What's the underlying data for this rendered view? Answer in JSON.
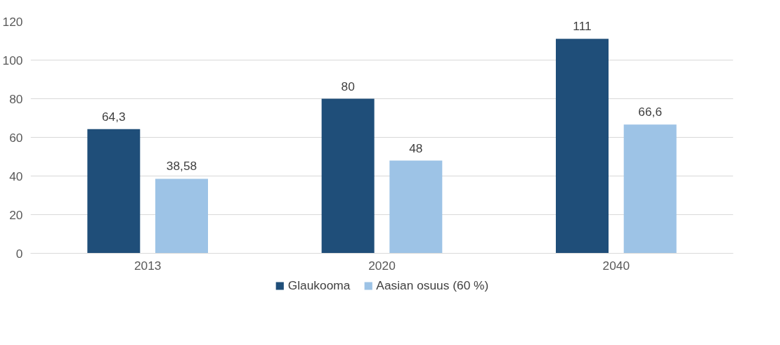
{
  "chart_data": {
    "type": "bar",
    "categories": [
      "2013",
      "2020",
      "2040"
    ],
    "series": [
      {
        "name": "Glaukooma",
        "color": "#1f4e79",
        "values": [
          64.3,
          80,
          111
        ],
        "value_labels": [
          "64,3",
          "80",
          "111"
        ]
      },
      {
        "name": "Aasian osuus (60 %)",
        "color": "#9dc3e6",
        "values": [
          38.58,
          48,
          66.6
        ],
        "value_labels": [
          "38,58",
          "48",
          "66,6"
        ]
      }
    ],
    "ylim": [
      0,
      120
    ],
    "yticks": [
      0,
      20,
      40,
      60,
      80,
      100,
      120
    ],
    "grid": "y",
    "legend": "bottom"
  }
}
